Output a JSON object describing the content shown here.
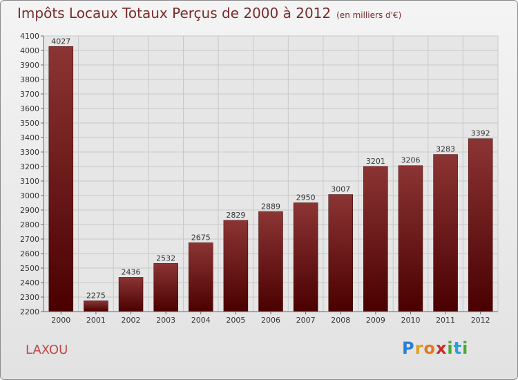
{
  "header": {
    "title": "Impôts Locaux Totaux Perçus de 2000 à 2012",
    "subtitle": "(en milliers d'€)"
  },
  "footer": {
    "commune": "LAXOU",
    "logo_letters": [
      "P",
      "r",
      "o",
      "x",
      "i",
      "t",
      "i"
    ],
    "logo_colors": [
      "#2a7fd4",
      "#e0a020",
      "#e07a20",
      "#cc2a2a",
      "#49a832",
      "#2a9fd4",
      "#49a832"
    ]
  },
  "colors": {
    "bar_top": "#8c3434",
    "bar_bottom": "#4a0000",
    "grid": "#c8c8c8",
    "plot_bg": "#e6e6e6"
  },
  "chart_data": {
    "type": "bar",
    "categories": [
      "2000",
      "2001",
      "2002",
      "2003",
      "2004",
      "2005",
      "2006",
      "2007",
      "2008",
      "2009",
      "2010",
      "2011",
      "2012"
    ],
    "values": [
      4027,
      2275,
      2436,
      2532,
      2675,
      2829,
      2889,
      2950,
      3007,
      3201,
      3206,
      3283,
      3392
    ],
    "title": "Impôts Locaux Totaux Perçus de 2000 à 2012",
    "ylim": [
      2200,
      4100
    ],
    "yticks": [
      2200,
      2300,
      2400,
      2500,
      2600,
      2700,
      2800,
      2900,
      3000,
      3100,
      3200,
      3300,
      3400,
      3500,
      3600,
      3700,
      3800,
      3900,
      4000,
      4100
    ],
    "grid": true
  }
}
